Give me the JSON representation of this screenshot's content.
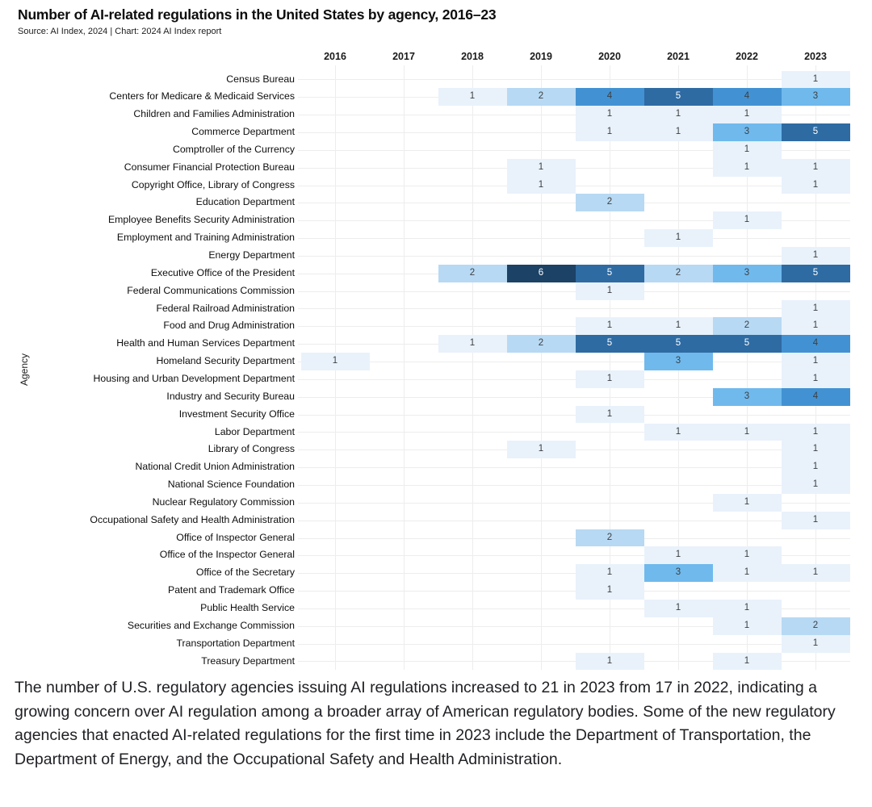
{
  "header": {
    "title": "Number of AI-related regulations in the United States by agency, 2016–23",
    "source": "Source: AI Index, 2024 | Chart: 2024 AI Index report"
  },
  "chart_data": {
    "type": "heatmap",
    "title": "Number of AI-related regulations in the United States by agency, 2016–23",
    "xlabel": "",
    "ylabel": "Agency",
    "x": [
      "2016",
      "2017",
      "2018",
      "2019",
      "2020",
      "2021",
      "2022",
      "2023"
    ],
    "value_range": [
      1,
      6
    ],
    "grid": true,
    "legend_position": "none",
    "color_scale": {
      "1": "#e9f2fb",
      "2": "#b7d9f4",
      "3": "#6fb9ed",
      "4": "#4292d3",
      "5": "#2e6ba3",
      "6": "#1c4266"
    },
    "cell_text_dark": "#3d4043",
    "cell_text_light": "#ffffff",
    "rows": [
      {
        "agency": "Census Bureau",
        "values": {
          "2023": 1
        }
      },
      {
        "agency": "Centers for Medicare & Medicaid Services",
        "values": {
          "2018": 1,
          "2019": 2,
          "2020": 4,
          "2021": 5,
          "2022": 4,
          "2023": 3
        }
      },
      {
        "agency": "Children and Families Administration",
        "values": {
          "2020": 1,
          "2021": 1,
          "2022": 1
        }
      },
      {
        "agency": "Commerce Department",
        "values": {
          "2020": 1,
          "2021": 1,
          "2022": 3,
          "2023": 5
        }
      },
      {
        "agency": "Comptroller of the Currency",
        "values": {
          "2022": 1
        }
      },
      {
        "agency": "Consumer Financial Protection Bureau",
        "values": {
          "2019": 1,
          "2022": 1,
          "2023": 1
        }
      },
      {
        "agency": "Copyright Office, Library of Congress",
        "values": {
          "2019": 1,
          "2023": 1
        }
      },
      {
        "agency": "Education Department",
        "values": {
          "2020": 2
        }
      },
      {
        "agency": "Employee Benefits Security Administration",
        "values": {
          "2022": 1
        }
      },
      {
        "agency": "Employment and Training Administration",
        "values": {
          "2021": 1
        }
      },
      {
        "agency": "Energy Department",
        "values": {
          "2023": 1
        }
      },
      {
        "agency": "Executive Office of the President",
        "values": {
          "2018": 2,
          "2019": 6,
          "2020": 5,
          "2021": 2,
          "2022": 3,
          "2023": 5
        }
      },
      {
        "agency": "Federal Communications Commission",
        "values": {
          "2020": 1
        }
      },
      {
        "agency": "Federal Railroad Administration",
        "values": {
          "2023": 1
        }
      },
      {
        "agency": "Food and Drug Administration",
        "values": {
          "2020": 1,
          "2021": 1,
          "2022": 2,
          "2023": 1
        }
      },
      {
        "agency": "Health and Human Services Department",
        "values": {
          "2018": 1,
          "2019": 2,
          "2020": 5,
          "2021": 5,
          "2022": 5,
          "2023": 4
        }
      },
      {
        "agency": "Homeland Security Department",
        "values": {
          "2016": 1,
          "2021": 3,
          "2023": 1
        }
      },
      {
        "agency": "Housing and Urban Development Department",
        "values": {
          "2020": 1,
          "2023": 1
        }
      },
      {
        "agency": "Industry and Security Bureau",
        "values": {
          "2022": 3,
          "2023": 4
        }
      },
      {
        "agency": "Investment Security Office",
        "values": {
          "2020": 1
        }
      },
      {
        "agency": "Labor Department",
        "values": {
          "2021": 1,
          "2022": 1,
          "2023": 1
        }
      },
      {
        "agency": "Library of Congress",
        "values": {
          "2019": 1,
          "2023": 1
        }
      },
      {
        "agency": "National Credit Union Administration",
        "values": {
          "2023": 1
        }
      },
      {
        "agency": "National Science Foundation",
        "values": {
          "2023": 1
        }
      },
      {
        "agency": "Nuclear Regulatory Commission",
        "values": {
          "2022": 1
        }
      },
      {
        "agency": "Occupational Safety and Health Administration",
        "values": {
          "2023": 1
        }
      },
      {
        "agency": "Office of Inspector General",
        "values": {
          "2020": 2
        }
      },
      {
        "agency": "Office of the Inspector General",
        "values": {
          "2021": 1,
          "2022": 1
        }
      },
      {
        "agency": "Office of the Secretary",
        "values": {
          "2020": 1,
          "2021": 3,
          "2022": 1,
          "2023": 1
        }
      },
      {
        "agency": "Patent and Trademark Office",
        "values": {
          "2020": 1
        }
      },
      {
        "agency": "Public Health Service",
        "values": {
          "2021": 1,
          "2022": 1
        }
      },
      {
        "agency": "Securities and Exchange Commission",
        "values": {
          "2022": 1,
          "2023": 2
        }
      },
      {
        "agency": "Transportation Department",
        "values": {
          "2023": 1
        }
      },
      {
        "agency": "Treasury Department",
        "values": {
          "2020": 1,
          "2022": 1
        }
      }
    ]
  },
  "caption": "The number of U.S. regulatory agencies issuing AI regulations increased to 21 in 2023 from 17 in 2022, indicating a growing concern over AI regulation among a broader array of American regulatory bodies. Some of the new regulatory agencies that enacted AI-related regulations for the first time in 2023 include the Department of Transportation, the Department of Energy, and the Occupational Safety and Health Administration."
}
